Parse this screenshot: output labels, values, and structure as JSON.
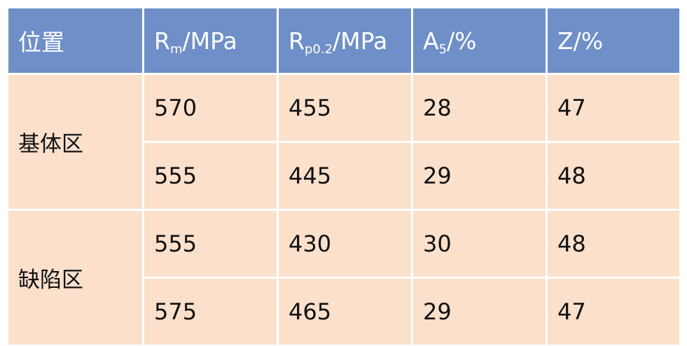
{
  "colors": {
    "header_bg": "#6f8fc8",
    "header_text": "#ffffff",
    "cell_bg": "#fbe0cc",
    "cell_text": "#111111"
  },
  "header": {
    "location": "位置",
    "rm": {
      "main": "R",
      "sub": "m",
      "unit": "/MPa"
    },
    "rp": {
      "main": "R",
      "sub": "p0.2",
      "unit": "/MPa"
    },
    "a5": {
      "main": "A",
      "sub": "5",
      "unit": "/%"
    },
    "z": {
      "text": "Z/%"
    }
  },
  "groups": [
    {
      "label": "基体区",
      "rows": [
        {
          "rm": "570",
          "rp": "455",
          "a5": "28",
          "z": "47"
        },
        {
          "rm": "555",
          "rp": "445",
          "a5": "29",
          "z": "48"
        }
      ]
    },
    {
      "label": "缺陷区",
      "rows": [
        {
          "rm": "555",
          "rp": "430",
          "a5": "30",
          "z": "48"
        },
        {
          "rm": "575",
          "rp": "465",
          "a5": "29",
          "z": "47"
        }
      ]
    }
  ]
}
